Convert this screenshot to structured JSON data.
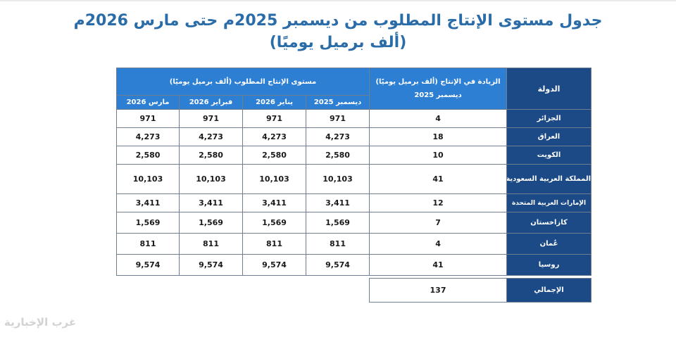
{
  "title_line1": "جدول مستوى الإنتاج المطلوب من ديسمبر 2025م حتى مارس 2026م",
  "title_line2": "(ألف برميل يوميًا)",
  "headers": {
    "country": "الدولة",
    "increase_line1": "الزيادة في الإنتاج (ألف برميل يوميًا)",
    "increase_line2": "ديسمبر 2025",
    "required": "مستوى الإنتاج المطلوب (ألف برميل يوميًا)",
    "months": [
      "ديسمبر 2025",
      "يناير 2026",
      "فبراير 2026",
      "مارس 2026"
    ]
  },
  "rows": [
    {
      "country": "الجزائر",
      "increase": "4",
      "values": [
        "971",
        "971",
        "971",
        "971"
      ]
    },
    {
      "country": "العراق",
      "increase": "18",
      "values": [
        "4,273",
        "4,273",
        "4,273",
        "4,273"
      ]
    },
    {
      "country": "الكويت",
      "increase": "10",
      "values": [
        "2,580",
        "2,580",
        "2,580",
        "2,580"
      ]
    },
    {
      "country": "المملكة العربية السعودية",
      "increase": "41",
      "values": [
        "10,103",
        "10,103",
        "10,103",
        "10,103"
      ]
    },
    {
      "country": "الإمارات العربية المتحدة",
      "increase": "12",
      "values": [
        "3,411",
        "3,411",
        "3,411",
        "3,411"
      ]
    },
    {
      "country": "كازاخستان",
      "increase": "7",
      "values": [
        "1,569",
        "1,569",
        "1,569",
        "1,569"
      ]
    },
    {
      "country": "عُمان",
      "increase": "4",
      "values": [
        "811",
        "811",
        "811",
        "811"
      ]
    },
    {
      "country": "روسيا",
      "increase": "41",
      "values": [
        "9,574",
        "9,574",
        "9,574",
        "9,574"
      ]
    }
  ],
  "total": {
    "label": "الإجمالي",
    "increase": "137"
  },
  "watermark": "غرب الإخبارية"
}
